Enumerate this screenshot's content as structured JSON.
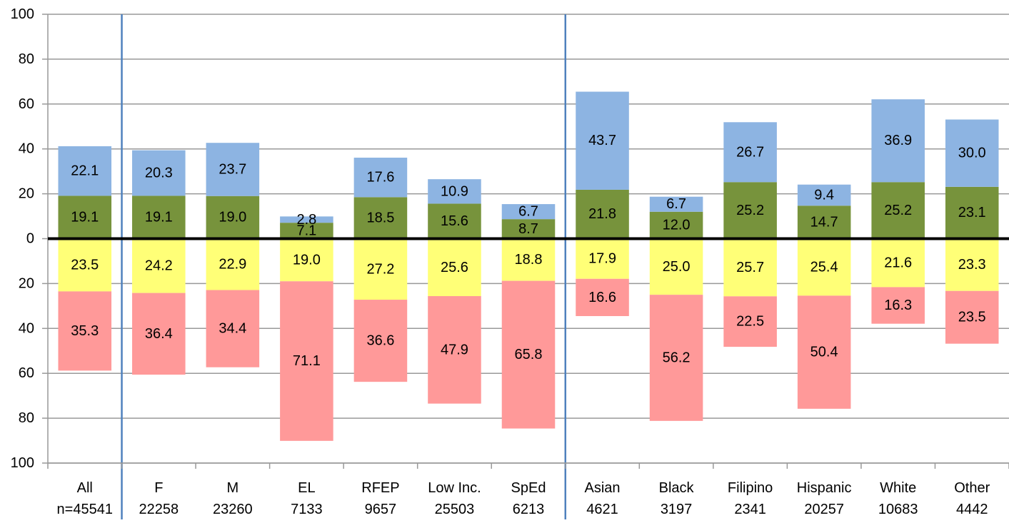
{
  "chart_data": {
    "type": "bar",
    "subtype": "diverging-stacked-bar",
    "title": "",
    "xlabel": "",
    "ylabel": "",
    "ylim": [
      -100,
      100
    ],
    "y_ticks": [
      {
        "value": 100,
        "label": "100"
      },
      {
        "value": 80,
        "label": "80"
      },
      {
        "value": 60,
        "label": "60"
      },
      {
        "value": 40,
        "label": "40"
      },
      {
        "value": 20,
        "label": "20"
      },
      {
        "value": 0,
        "label": "0"
      },
      {
        "value": -20,
        "label": "20"
      },
      {
        "value": -40,
        "label": "40"
      },
      {
        "value": -60,
        "label": "60"
      },
      {
        "value": -80,
        "label": "80"
      },
      {
        "value": -100,
        "label": "100"
      }
    ],
    "grid": true,
    "legend": "none",
    "categories": [
      "All",
      "F",
      "M",
      "EL",
      "RFEP",
      "Low Inc.",
      "SpEd",
      "Asian",
      "Black",
      "Filipino",
      "Hispanic",
      "White",
      "Other"
    ],
    "counts": [
      "n=45541",
      "22258",
      "23260",
      "7133",
      "9657",
      "25503",
      "6213",
      "4621",
      "3197",
      "2341",
      "20257",
      "10683",
      "4442"
    ],
    "group_dividers_after": [
      "All",
      "SpEd"
    ],
    "series": [
      {
        "direction": "below",
        "order": 2,
        "color": "#FF9999",
        "values": [
          35.3,
          36.4,
          34.4,
          71.1,
          36.6,
          47.9,
          65.8,
          16.6,
          56.2,
          22.5,
          50.4,
          16.3,
          23.5
        ]
      },
      {
        "direction": "below",
        "order": 1,
        "color": "#FFFF77",
        "values": [
          23.5,
          24.2,
          22.9,
          19.0,
          27.2,
          25.6,
          18.8,
          17.9,
          25.0,
          25.7,
          25.4,
          21.6,
          23.3
        ]
      },
      {
        "direction": "above",
        "order": 1,
        "color": "#77933C",
        "values": [
          19.1,
          19.1,
          19.0,
          7.1,
          18.5,
          15.6,
          8.7,
          21.8,
          12.0,
          25.2,
          14.7,
          25.2,
          23.1
        ]
      },
      {
        "direction": "above",
        "order": 2,
        "color": "#8DB4E2",
        "values": [
          22.1,
          20.3,
          23.7,
          2.8,
          17.6,
          10.9,
          6.7,
          43.7,
          6.7,
          26.7,
          9.4,
          36.9,
          30.0
        ]
      }
    ],
    "colors": {
      "gridline": "#999999",
      "zero_line": "#000000",
      "divider": "#4F81BD",
      "label_text": "#000000"
    }
  }
}
